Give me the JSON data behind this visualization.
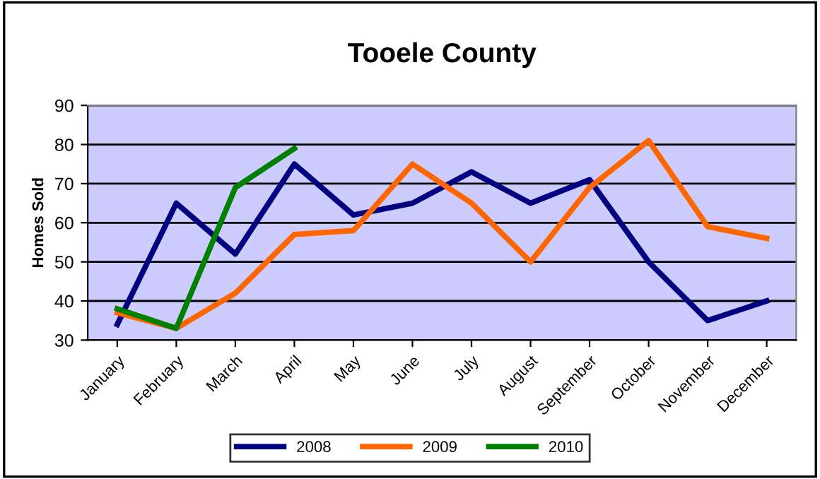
{
  "chart_data": {
    "type": "line",
    "title": "Tooele County",
    "ylabel": "Homes Sold",
    "categories": [
      "January",
      "February",
      "March",
      "April",
      "May",
      "June",
      "July",
      "August",
      "September",
      "October",
      "November",
      "December"
    ],
    "series": [
      {
        "name": "2008",
        "color": "#000080",
        "values": [
          34,
          65,
          52,
          75,
          62,
          65,
          73,
          65,
          71,
          50,
          35,
          40
        ]
      },
      {
        "name": "2009",
        "color": "#ff6600",
        "values": [
          37,
          33,
          42,
          57,
          58,
          75,
          65,
          50,
          69,
          81,
          59,
          56
        ]
      },
      {
        "name": "2010",
        "color": "#008000",
        "values": [
          38,
          33,
          69,
          79,
          null,
          null,
          null,
          null,
          null,
          null,
          null,
          null
        ]
      }
    ],
    "ylim": [
      30,
      90
    ],
    "yticks": [
      30,
      40,
      50,
      60,
      70,
      80,
      90
    ],
    "grid": "y",
    "legend": "bottom",
    "marker": "none",
    "line_style": "solid"
  }
}
